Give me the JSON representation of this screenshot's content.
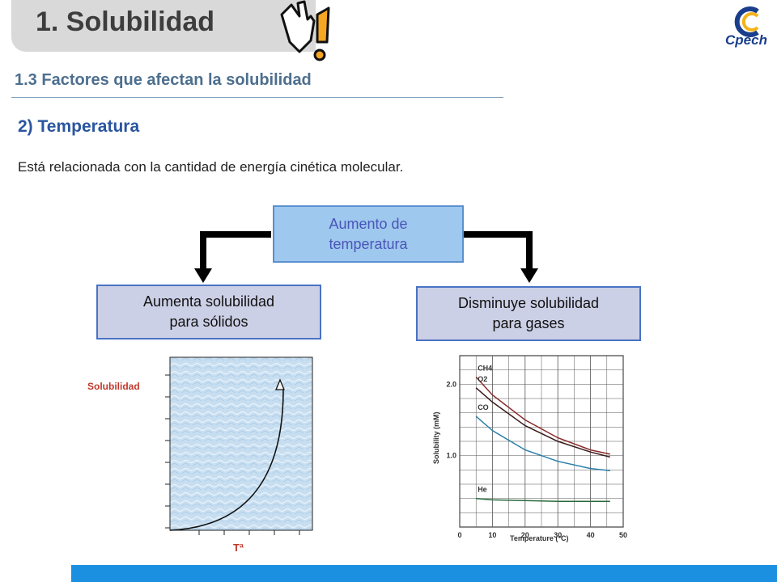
{
  "header": {
    "title": "1. Solubilidad",
    "logo_text": "Cpech",
    "subtitle": "1.3 Factores que afectan la solubilidad"
  },
  "section": {
    "heading": "2) Temperatura",
    "description": "Está relacionada con la cantidad de energía cinética molecular."
  },
  "diagram": {
    "top_box": "Aumento de\ntemperatura",
    "left_box": "Aumenta solubilidad\npara sólidos",
    "right_box": "Disminuye solubilidad\npara gases"
  },
  "chart_data": [
    {
      "type": "line",
      "ylabel": "Solubilidad",
      "xlabel": "Tª",
      "series": [
        {
          "shape": "increasing curve",
          "x": [
            0,
            0.5,
            1
          ],
          "y": [
            0,
            0.2,
            1
          ]
        }
      ]
    },
    {
      "type": "line",
      "xlabel": "Temperature (°C)",
      "ylabel": "Solubility (mM)",
      "x_ticks": [
        0,
        10,
        20,
        30,
        40,
        50
      ],
      "y_ticks": [
        1.0,
        2.0
      ],
      "xlim": [
        0,
        50
      ],
      "ylim": [
        0,
        2.4
      ],
      "grid": true,
      "series": [
        {
          "name": "CH4",
          "color": "#8a2a2a",
          "x": [
            5,
            10,
            20,
            30,
            40,
            46
          ],
          "y": [
            2.1,
            1.85,
            1.5,
            1.25,
            1.08,
            1.02
          ]
        },
        {
          "name": "O2",
          "color": "#3a1a1a",
          "x": [
            5,
            10,
            20,
            30,
            40,
            46
          ],
          "y": [
            1.95,
            1.75,
            1.42,
            1.2,
            1.05,
            0.98
          ]
        },
        {
          "name": "CO",
          "color": "#2a7fa8",
          "x": [
            5,
            10,
            20,
            30,
            40,
            46
          ],
          "y": [
            1.55,
            1.35,
            1.08,
            0.92,
            0.82,
            0.79
          ]
        },
        {
          "name": "He",
          "color": "#2a6a3a",
          "x": [
            5,
            10,
            20,
            30,
            40,
            46
          ],
          "y": [
            0.4,
            0.38,
            0.37,
            0.36,
            0.36,
            0.36
          ]
        }
      ]
    }
  ]
}
